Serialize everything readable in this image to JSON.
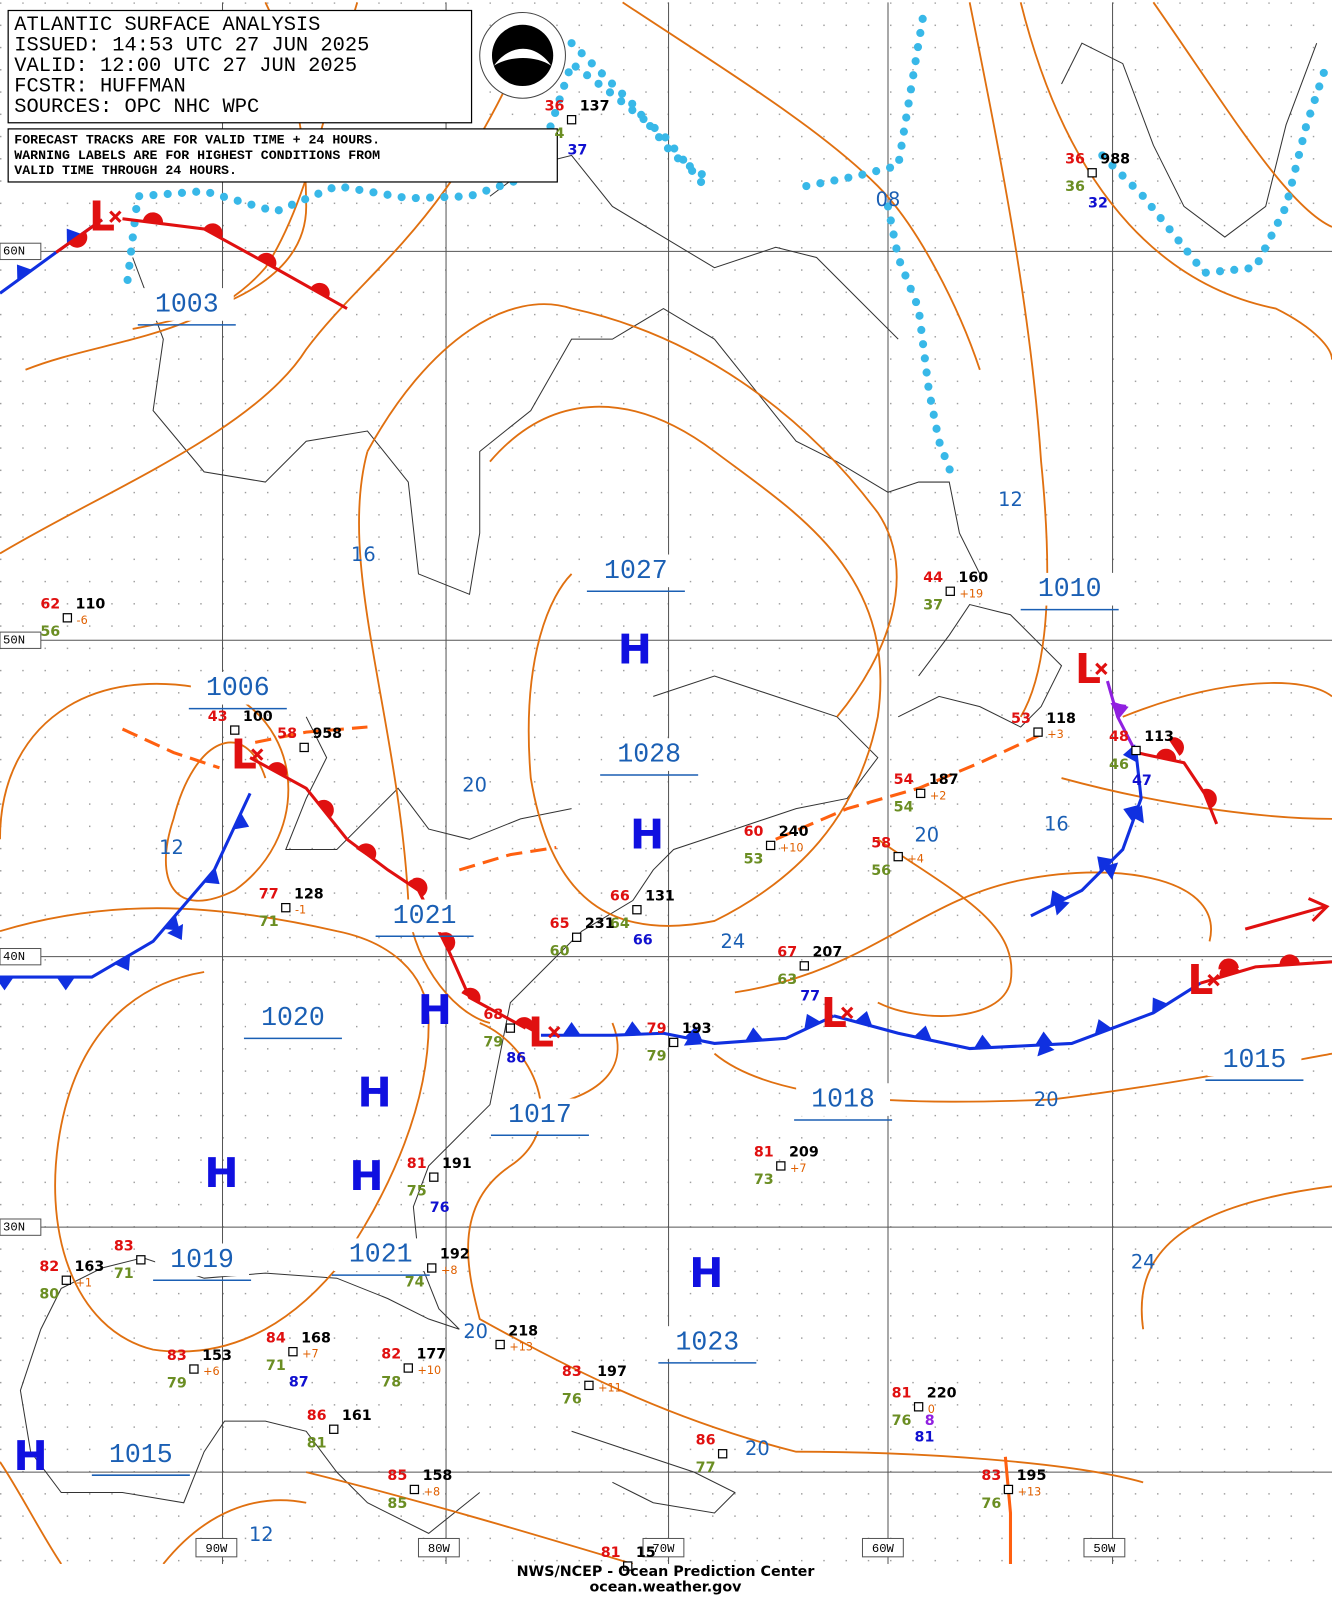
{
  "header": {
    "lines": [
      "ATLANTIC SURFACE ANALYSIS",
      "ISSUED: 14:53 UTC 27 JUN 2025",
      "VALID:  12:00 UTC 27 JUN 2025",
      "FCSTR:  HUFFMAN",
      "SOURCES: OPC NHC WPC"
    ]
  },
  "notice": {
    "lines": [
      "FORECAST TRACKS ARE FOR VALID TIME + 24 HOURS.",
      "WARNING LABELS ARE FOR HIGHEST CONDITIONS FROM",
      "VALID TIME THROUGH 24 HOURS."
    ]
  },
  "latitudes": [
    "60N",
    "50N",
    "40N",
    "30N"
  ],
  "longitudes": [
    "90W",
    "80W",
    "70W",
    "60W",
    "50W"
  ],
  "highs": [
    "H",
    "H",
    "H",
    "H",
    "H",
    "H",
    "H",
    "H"
  ],
  "lows": [
    "L",
    "L",
    "L",
    "L",
    "L",
    "L"
  ],
  "pressure_labels": [
    "1003",
    "1006",
    "1027",
    "1028",
    "1021",
    "1020",
    "1017",
    "1018",
    "1010",
    "1015",
    "1019",
    "1021",
    "1023",
    "1015"
  ],
  "isobar_labels": [
    "08",
    "16",
    "12",
    "20",
    "12",
    "16",
    "20",
    "24",
    "20",
    "24",
    "20",
    "20",
    "12"
  ],
  "stations": [
    {
      "temp": "36",
      "pressure": "137",
      "dewpoint": "4",
      "sst": "37"
    },
    {
      "temp": "36",
      "pressure": "988",
      "dewpoint": "36",
      "sst": "32"
    },
    {
      "temp": "62",
      "pressure": "110",
      "dewpoint": "56",
      "tendency": "-6"
    },
    {
      "temp": "43",
      "pressure": "100"
    },
    {
      "temp": "58",
      "pressure": "958"
    },
    {
      "temp": "44",
      "pressure": "160",
      "dewpoint": "37",
      "tendency": "+19"
    },
    {
      "temp": "53",
      "pressure": "118",
      "tendency": "+3"
    },
    {
      "temp": "48",
      "pressure": "113",
      "dewpoint": "46",
      "sst": "47"
    },
    {
      "temp": "54",
      "pressure": "187",
      "dewpoint": "54",
      "tendency": "+2"
    },
    {
      "temp": "60",
      "pressure": "240",
      "dewpoint": "53",
      "tendency": "+10"
    },
    {
      "temp": "58",
      "dewpoint": "56",
      "tendency": "+4"
    },
    {
      "temp": "77",
      "pressure": "128",
      "dewpoint": "71",
      "tendency": "-1"
    },
    {
      "temp": "66",
      "pressure": "131",
      "dewpoint": "64",
      "sst": "66"
    },
    {
      "temp": "65",
      "pressure": "231",
      "dewpoint": "60"
    },
    {
      "temp": "67",
      "pressure": "207",
      "dewpoint": "63",
      "sst": "77"
    },
    {
      "temp": "79",
      "pressure": "193",
      "dewpoint": "79"
    },
    {
      "temp": "68",
      "dewpoint": "79",
      "sst": "86"
    },
    {
      "temp": "81",
      "pressure": "209",
      "dewpoint": "73",
      "tendency": "+7"
    },
    {
      "temp": "81",
      "pressure": "191",
      "dewpoint": "75",
      "sst": "76"
    },
    {
      "temp": "82",
      "pressure": "163",
      "dewpoint": "80",
      "tendency": "+1"
    },
    {
      "temp": "83",
      "dewpoint": "71"
    },
    {
      "pressure": "192",
      "dewpoint": "74",
      "tendency": "+8"
    },
    {
      "temp": "83",
      "pressure": "153",
      "dewpoint": "79",
      "tendency": "+6"
    },
    {
      "temp": "84",
      "pressure": "168",
      "dewpoint": "71",
      "sst": "87",
      "tendency": "+7"
    },
    {
      "temp": "82",
      "pressure": "177",
      "dewpoint": "78",
      "tendency": "+10"
    },
    {
      "pressure": "218",
      "tendency": "+13"
    },
    {
      "temp": "83",
      "pressure": "197",
      "dewpoint": "76",
      "tendency": "+11"
    },
    {
      "temp": "86",
      "pressure": "161",
      "dewpoint": "81"
    },
    {
      "temp": "85",
      "pressure": "158",
      "dewpoint": "85",
      "tendency": "+8"
    },
    {
      "temp": "86",
      "dewpoint": "77"
    },
    {
      "temp": "81",
      "pressure": "220",
      "dewpoint": "76",
      "sst": "81",
      "other": "8",
      "tendency": "0"
    },
    {
      "temp": "83",
      "pressure": "195",
      "dewpoint": "76",
      "tendency": "+13"
    },
    {
      "temp": "81",
      "pressure": "15"
    }
  ],
  "footer": {
    "lines": [
      "NWS/NCEP - Ocean Prediction Center",
      "ocean.weather.gov"
    ]
  }
}
